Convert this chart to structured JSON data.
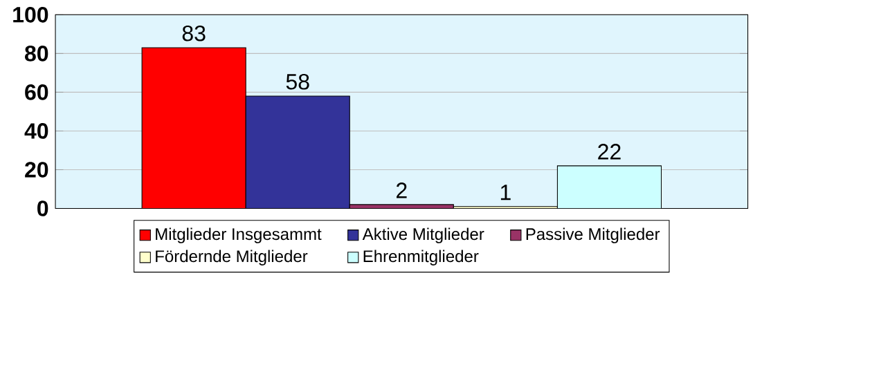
{
  "chart_data": {
    "type": "bar",
    "categories": [
      null
    ],
    "series": [
      {
        "name": "Mitglieder Insgesammt",
        "color": "#ff0000",
        "values": [
          83
        ]
      },
      {
        "name": "Aktive Mitglieder",
        "color": "#333399",
        "values": [
          58
        ]
      },
      {
        "name": "Passive Mitglieder",
        "color": "#993366",
        "values": [
          2
        ]
      },
      {
        "name": "Fördernde Mitglieder",
        "color": "#ffffcc",
        "values": [
          1
        ]
      },
      {
        "name": "Ehrenmitglieder",
        "color": "#ccffff",
        "values": [
          22
        ]
      }
    ],
    "ylim": [
      0,
      100
    ],
    "yticks": [
      0,
      20,
      40,
      60,
      80,
      100
    ],
    "grid": "y",
    "legend": "bottom",
    "data_labels": true
  }
}
